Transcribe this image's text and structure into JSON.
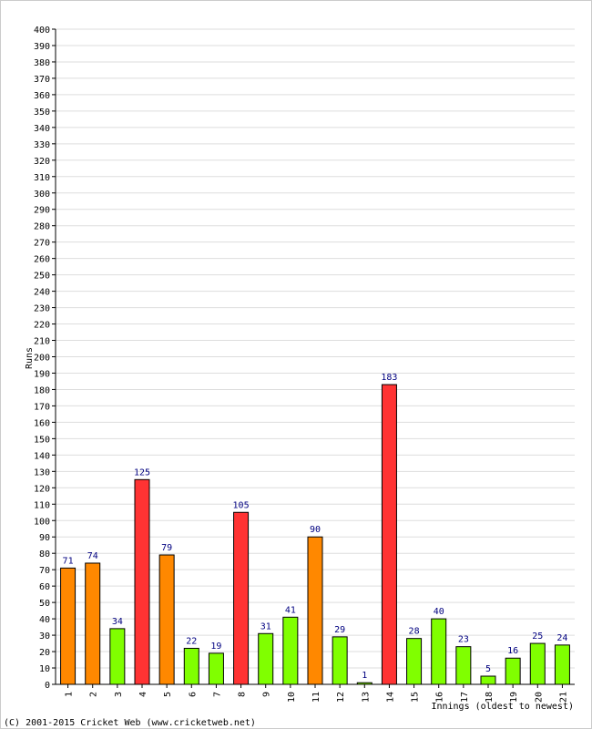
{
  "chart_data": {
    "type": "bar",
    "categories": [
      "1",
      "2",
      "3",
      "4",
      "5",
      "6",
      "7",
      "8",
      "9",
      "10",
      "11",
      "12",
      "13",
      "14",
      "15",
      "16",
      "17",
      "18",
      "19",
      "20",
      "21"
    ],
    "values": [
      71,
      74,
      34,
      125,
      79,
      22,
      19,
      105,
      31,
      41,
      90,
      29,
      1,
      183,
      28,
      40,
      23,
      5,
      16,
      25,
      24
    ],
    "bar_colors": [
      "#ff8800",
      "#ff8800",
      "#80ff00",
      "#ff3333",
      "#ff8800",
      "#80ff00",
      "#80ff00",
      "#ff3333",
      "#80ff00",
      "#80ff00",
      "#ff8800",
      "#80ff00",
      "#80ff00",
      "#ff3333",
      "#80ff00",
      "#80ff00",
      "#80ff00",
      "#80ff00",
      "#80ff00",
      "#80ff00",
      "#80ff00"
    ],
    "ylabel": "Runs",
    "xlabel": "Innings (oldest to newest)",
    "ylim": [
      0,
      400
    ],
    "ytick_step": 10,
    "grid": true,
    "data_labels": true
  },
  "copyright": "(C) 2001-2015 Cricket Web (www.cricketweb.net)",
  "colors": {
    "grid": "#dddddd",
    "axis": "#000000",
    "bar_stroke": "#000000",
    "value_label": "#000080",
    "text": "#000000"
  }
}
